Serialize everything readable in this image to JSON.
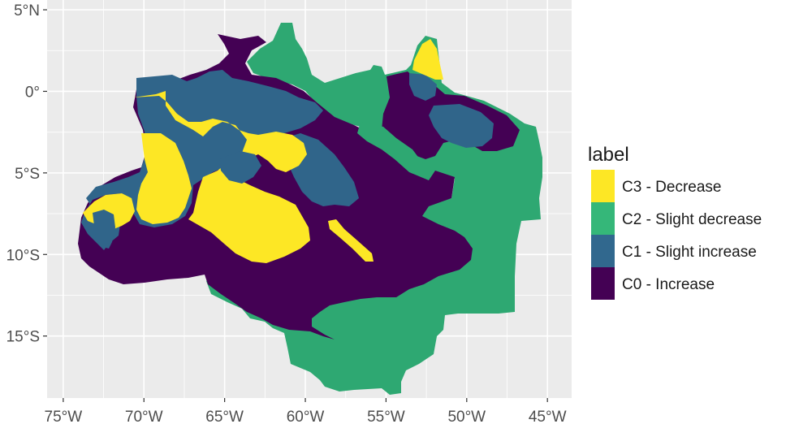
{
  "chart_data": {
    "type": "choropleth-map",
    "x_axis": {
      "range": [
        -76,
        -43.5
      ],
      "ticks": [
        {
          "value": -75,
          "label": "75°W"
        },
        {
          "value": -70,
          "label": "70°W"
        },
        {
          "value": -65,
          "label": "65°W"
        },
        {
          "value": -60,
          "label": "60°W"
        },
        {
          "value": -55,
          "label": "55°W"
        },
        {
          "value": -50,
          "label": "50°W"
        },
        {
          "value": -45,
          "label": "45°W"
        }
      ]
    },
    "y_axis": {
      "range": [
        -18.8,
        5.6
      ],
      "ticks": [
        {
          "value": 5,
          "label": "5°N"
        },
        {
          "value": 0,
          "label": "0°"
        },
        {
          "value": -5,
          "label": "5°S"
        },
        {
          "value": -10,
          "label": "10°S"
        },
        {
          "value": -15,
          "label": "15°S"
        }
      ]
    },
    "grid": true,
    "legend": {
      "title": "label",
      "placement": "right",
      "items": [
        {
          "key": "C3",
          "label": "C3 - Decrease",
          "color": "#fde725"
        },
        {
          "key": "C2",
          "label": "C2 - Slight decrease",
          "color": "#35b779"
        },
        {
          "key": "C1",
          "label": "C1 - Slight increase",
          "color": "#31688e"
        },
        {
          "key": "C0",
          "label": "C0 - Increase",
          "color": "#440154"
        }
      ]
    },
    "panel_background": "#ebebeb",
    "gridline_color": "#ffffff"
  }
}
